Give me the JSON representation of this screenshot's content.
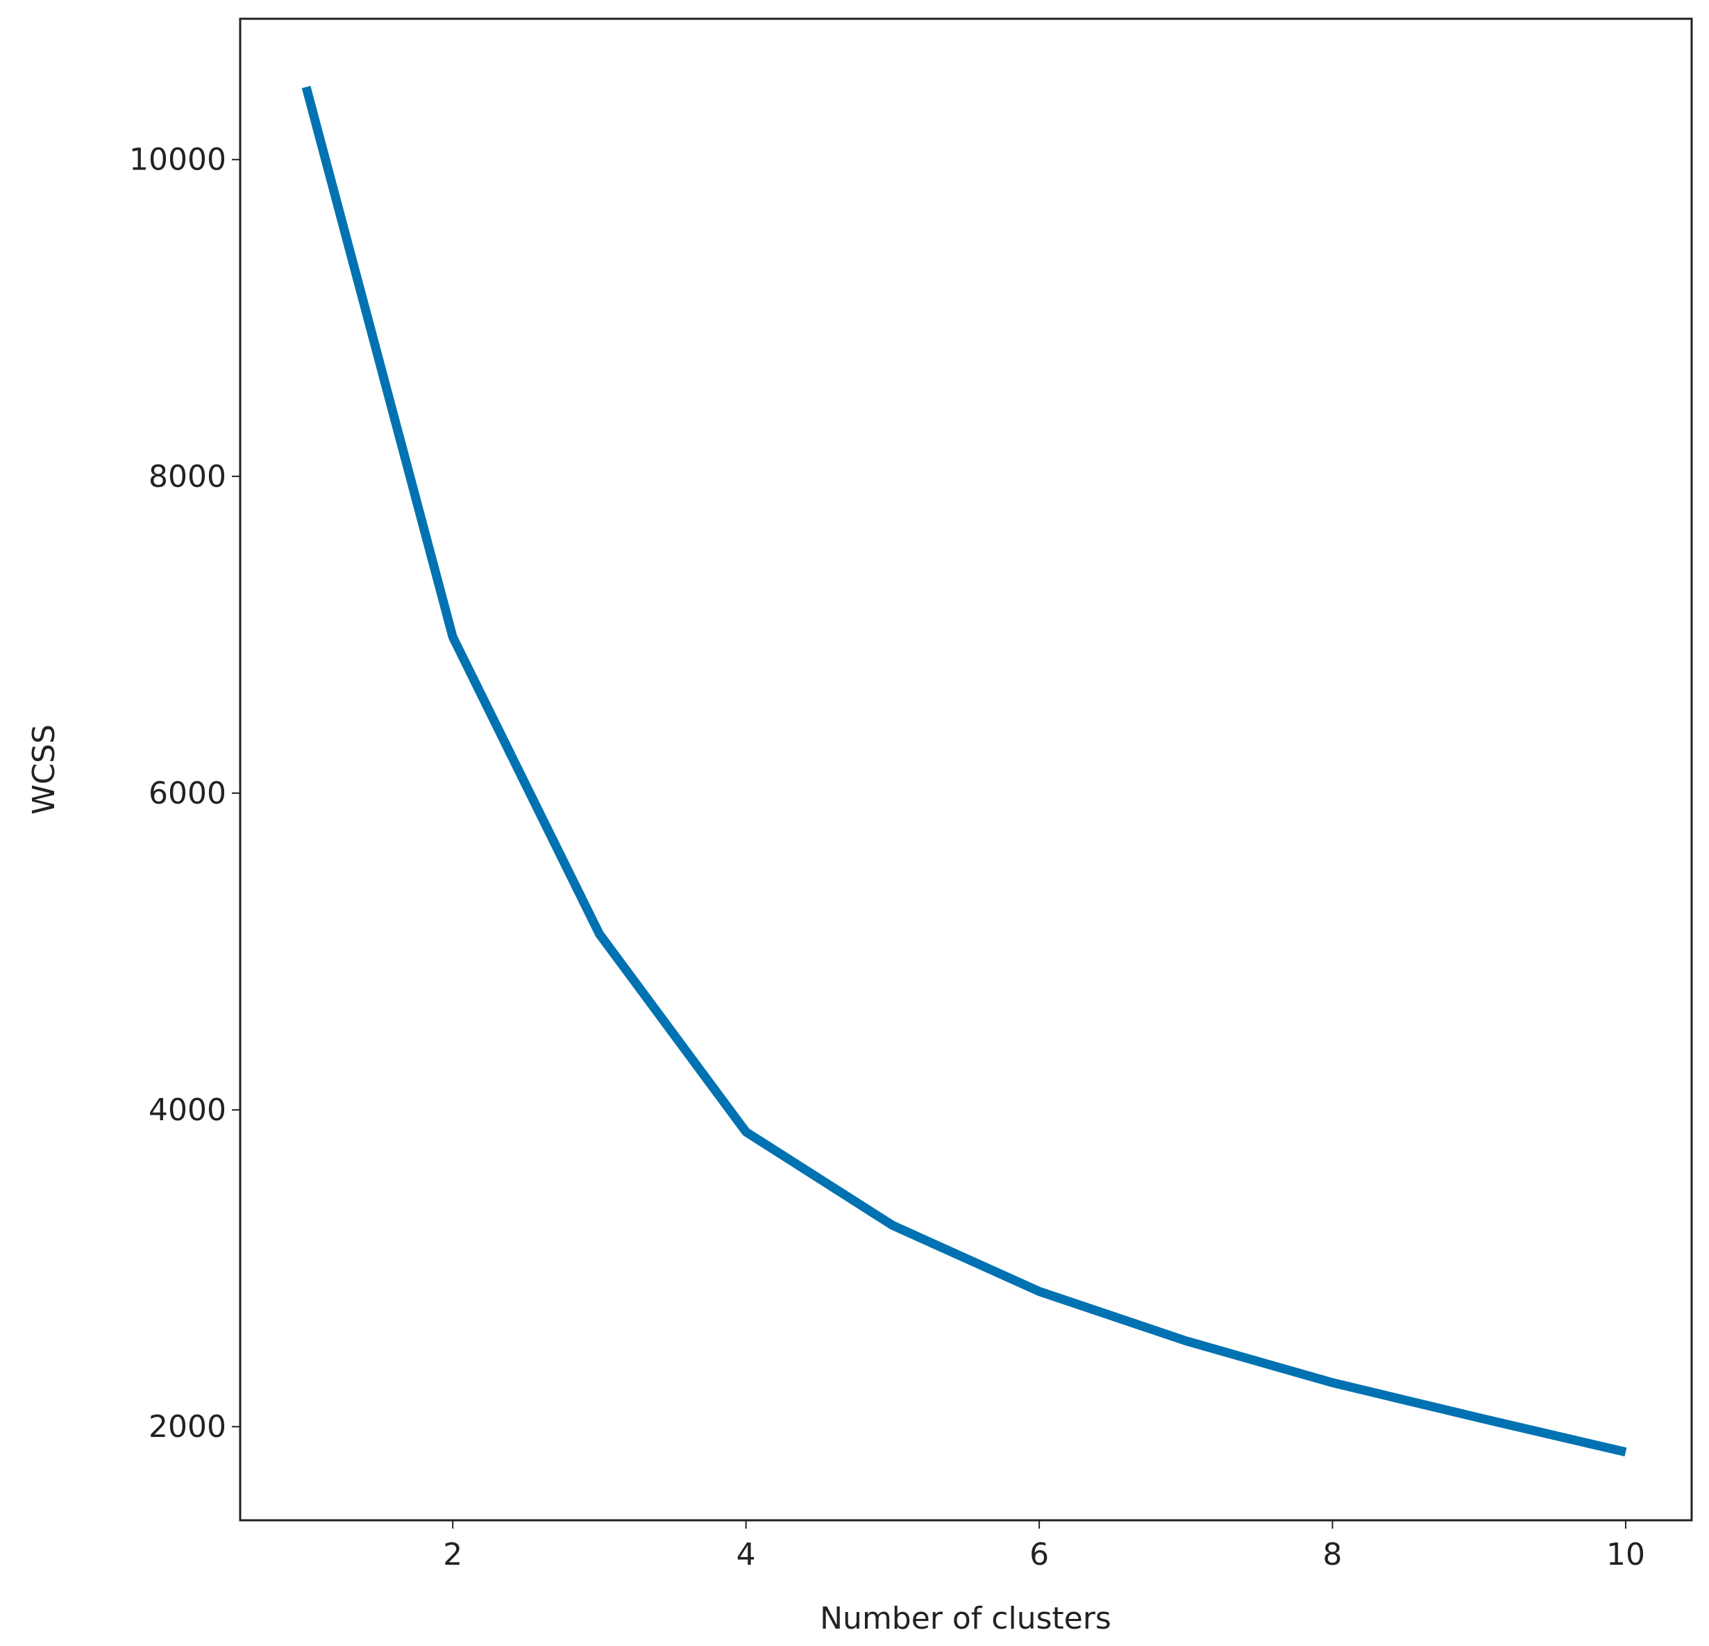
{
  "chart_data": {
    "type": "line",
    "x_label": "Number of clusters",
    "y_label": "WCSS",
    "x": [
      1,
      2,
      3,
      4,
      5,
      6,
      7,
      8,
      9,
      10
    ],
    "series": [
      {
        "color": "#0072b2",
        "values": [
          10458,
          6986,
          5111,
          3861,
          3271,
          2854,
          2542,
          2278,
          2056,
          1840
        ]
      }
    ],
    "xlim": [
      0.55,
      10.45
    ],
    "xticks": [
      2,
      4,
      6,
      8,
      10
    ],
    "ylim": [
      1409,
      10889
    ],
    "yticks": [
      2000,
      4000,
      6000,
      8000,
      10000
    ],
    "grid": false
  }
}
